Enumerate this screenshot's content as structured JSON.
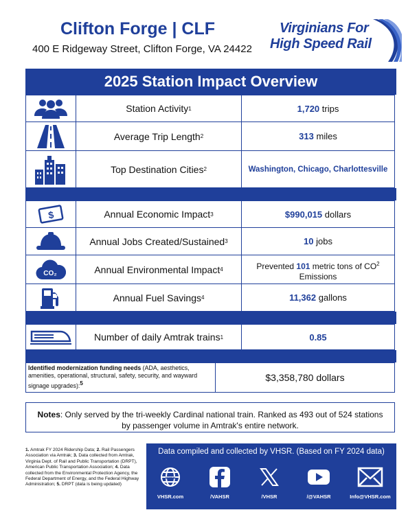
{
  "header": {
    "title": "Clifton Forge | CLF",
    "address": "400 E Ridgeway Street, Clifton Forge, VA 24422",
    "logo_line1": "Virginians For",
    "logo_line2": "High Speed Rail"
  },
  "banner": "2025 Station Impact Overview",
  "rows": [
    {
      "icon": "people-icon",
      "label": "Station Activity",
      "note": "1",
      "value_bold": "1,720",
      "value_unit": "trips"
    },
    {
      "icon": "road-icon",
      "label": "Average Trip Length",
      "note": "2",
      "value_bold": "313",
      "value_unit": "miles"
    },
    {
      "icon": "buildings-icon",
      "label": "Top Destination Cities",
      "note": "2",
      "value_bold": "Washington, Chicago, Charlottesville",
      "value_unit": ""
    },
    {
      "icon": "money-icon",
      "label": "Annual Economic Impact",
      "note": "3",
      "value_bold": "$990,015",
      "value_unit": "dollars"
    },
    {
      "icon": "hardhat-icon",
      "label": "Annual Jobs Created/Sustained",
      "note": "3",
      "value_bold": "10",
      "value_unit": "jobs"
    },
    {
      "icon": "co2-cloud-icon",
      "label": "Annual Environmental Impact",
      "note": "4",
      "value_pre": "Prevented",
      "value_bold": "101",
      "value_unit": "metric tons of  CO",
      "value_sup": "2",
      "value_post": "Emissions"
    },
    {
      "icon": "fuel-pump-icon",
      "label": "Annual Fuel Savings",
      "note": "4",
      "value_bold": "11,362",
      "value_unit": "gallons"
    },
    {
      "icon": "train-icon",
      "label": "Number of daily Amtrak trains",
      "note": "1",
      "value_bold": "0.85",
      "value_unit": ""
    }
  ],
  "funding": {
    "label_bold": "Identified modernization funding needs",
    "label_rest": " (ADA, aesthetics, amenities, operational, structural, safety, security, and wayward signage upgrades):",
    "label_note": "5",
    "value": "$3,358,780 dollars"
  },
  "notes": {
    "label": "Notes",
    "text": ": Only served by the tri-weekly Cardinal national train. Ranked as 493 out of 524 stations by passenger volume in Amtrak's entire network."
  },
  "footnotes": [
    {
      "num": "1.",
      "text": " Amtrak FY 2024 Ridership Data; "
    },
    {
      "num": "2.",
      "text": " Rail Passengers Association via Amtrak; "
    },
    {
      "num": "3.",
      "text": " Data collected from Amtrak, Virginia Dept. of Rail and Public Transportation (DRPT), American Public Transportation Association; "
    },
    {
      "num": "4.",
      "text": " Data collected from the Environmental Protection Agency, the Federal Department of Energy, and the Federal Highway Administration; "
    },
    {
      "num": "5.",
      "text": " DRPT (data is being updated)"
    }
  ],
  "footer": {
    "caption": "Data compiled and collected by VHSR. (Based on FY 2024 data)",
    "links": [
      {
        "icon": "globe-icon",
        "label": "VHSR.com"
      },
      {
        "icon": "facebook-icon",
        "label": "/VAHSR"
      },
      {
        "icon": "x-icon",
        "label": "/VHSR"
      },
      {
        "icon": "youtube-icon",
        "label": "/@VAHSR"
      },
      {
        "icon": "mail-icon",
        "label": "Info@VHSR.com"
      }
    ]
  }
}
